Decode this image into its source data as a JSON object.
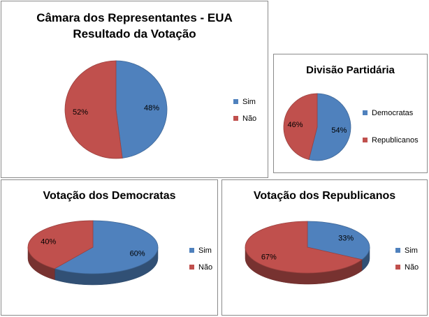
{
  "colors": {
    "blue": "#4f81bd",
    "red": "#c0504d"
  },
  "chart_data": [
    {
      "type": "pie",
      "title": [
        "Câmara dos Representantes - EUA",
        "Resultado da Votação"
      ],
      "labels": [
        "Sim",
        "Não"
      ],
      "values": [
        48,
        52
      ],
      "data_labels": [
        "48%",
        "52%"
      ],
      "legend": "right"
    },
    {
      "type": "pie",
      "title": [
        "Divisão Partidária"
      ],
      "labels": [
        "Democratas",
        "Republicanos"
      ],
      "values": [
        54,
        46
      ],
      "data_labels": [
        "54%",
        "46%"
      ],
      "legend": "right"
    },
    {
      "type": "pie",
      "title": [
        "Votação dos Democratas"
      ],
      "labels": [
        "Sim",
        "Não"
      ],
      "values": [
        60,
        40
      ],
      "data_labels": [
        "60%",
        "40%"
      ],
      "legend": "right"
    },
    {
      "type": "pie",
      "title": [
        "Votação dos Republicanos"
      ],
      "labels": [
        "Sim",
        "Não"
      ],
      "values": [
        33,
        67
      ],
      "data_labels": [
        "33%",
        "67%"
      ],
      "legend": "right"
    }
  ]
}
